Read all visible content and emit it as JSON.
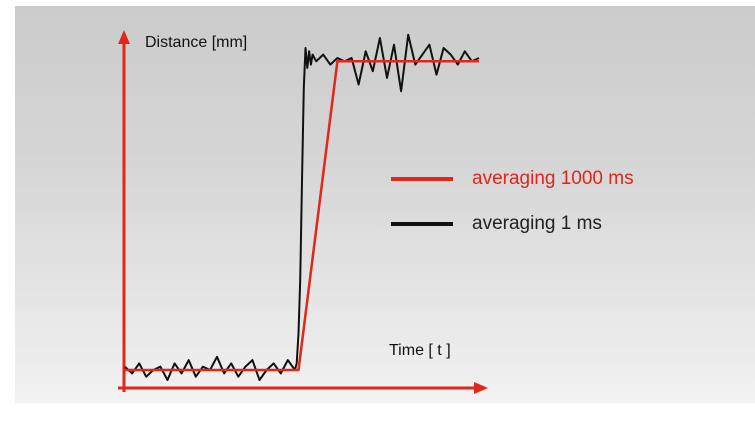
{
  "chart_data": {
    "type": "line",
    "ylabel": "Distance [mm]",
    "xlabel": "Time [ t ]",
    "xlim": [
      0,
      100
    ],
    "ylim": [
      0,
      100
    ],
    "grid": false,
    "legend_placement": "right",
    "series": [
      {
        "name": "averaging 1000 ms",
        "color": "#e1261c",
        "x": [
          0,
          49,
          60,
          100
        ],
        "y": [
          3,
          3,
          96,
          96
        ]
      },
      {
        "name": "averaging 1 ms",
        "color": "#111111",
        "x": [
          0,
          2,
          4,
          6,
          8,
          10,
          12,
          14,
          16,
          18,
          20,
          22,
          24,
          26,
          28,
          30,
          32,
          34,
          36,
          38,
          40,
          42,
          44,
          46,
          48,
          48.5,
          49,
          49.5,
          50,
          50.5,
          51,
          51.5,
          52,
          52.5,
          53,
          54,
          56,
          58,
          60,
          62,
          64,
          66,
          68,
          70,
          72,
          74,
          76,
          78,
          80,
          82,
          84,
          86,
          88,
          90,
          92,
          94,
          96,
          98,
          100
        ],
        "y": [
          4,
          2,
          5,
          1,
          3,
          4,
          0,
          5,
          2,
          6,
          1,
          4,
          3,
          7,
          2,
          5,
          1,
          4,
          6,
          0,
          3,
          5,
          2,
          6,
          3,
          5,
          14,
          30,
          60,
          88,
          100,
          94,
          99,
          95,
          98,
          96,
          98,
          95,
          97,
          96,
          97,
          89,
          99,
          93,
          103,
          91,
          101,
          87,
          104,
          95,
          98,
          101,
          92,
          100,
          98,
          95,
          99,
          96,
          97
        ]
      }
    ]
  }
}
